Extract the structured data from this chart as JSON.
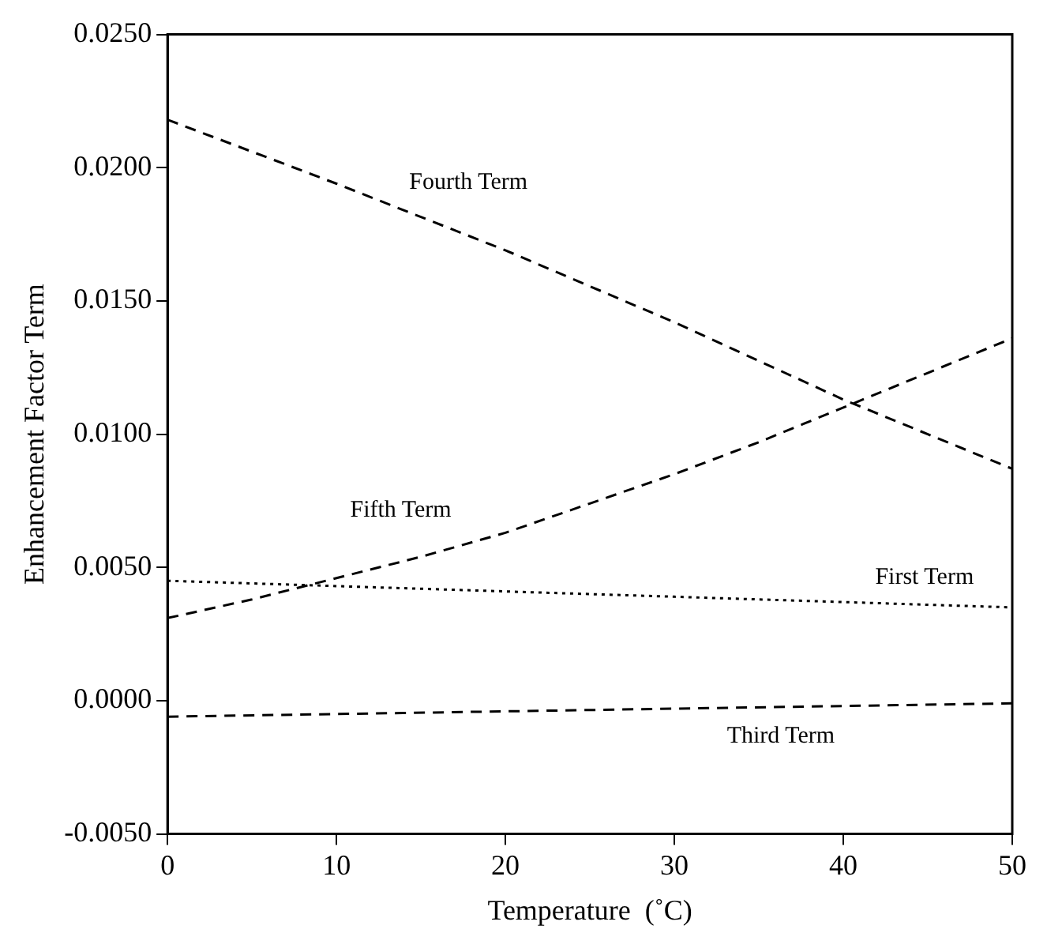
{
  "chart_data": {
    "type": "line",
    "xlabel": "Temperature  (˚C)",
    "ylabel": "Enhancement Factor Term",
    "xlim": [
      0,
      50
    ],
    "xticks": [
      0,
      10,
      20,
      30,
      40,
      50
    ],
    "ylim": [
      -0.005,
      0.025
    ],
    "yticks": [
      {
        "value": -0.005,
        "label": "-0.0050"
      },
      {
        "value": 0,
        "label": "0.0000"
      },
      {
        "value": 0.005,
        "label": "0.0050"
      },
      {
        "value": 0.01,
        "label": "0.0100"
      },
      {
        "value": 0.015,
        "label": "0.0150"
      },
      {
        "value": 0.02,
        "label": "0.0200"
      },
      {
        "value": 0.025,
        "label": "0.0250"
      }
    ],
    "grid": false,
    "legend": false,
    "marker": "none",
    "series": [
      {
        "name": "Fourth Term",
        "color": "#000000",
        "line_style": "dashed",
        "x": [
          0,
          10,
          20,
          30,
          40,
          50
        ],
        "values": [
          0.0218,
          0.0194,
          0.0169,
          0.0142,
          0.0113,
          0.0087
        ]
      },
      {
        "name": "Fifth Term",
        "color": "#000000",
        "line_style": "dashed",
        "x": [
          0,
          5,
          10,
          15,
          20,
          25,
          30,
          35,
          40,
          45,
          50
        ],
        "values": [
          0.0031,
          0.0038,
          0.0046,
          0.0054,
          0.0063,
          0.0074,
          0.0085,
          0.0097,
          0.011,
          0.0123,
          0.0136
        ]
      },
      {
        "name": "First Term",
        "color": "#000000",
        "line_style": "dotted",
        "x": [
          0,
          10,
          20,
          30,
          40,
          50
        ],
        "values": [
          0.0045,
          0.0043,
          0.0041,
          0.0039,
          0.0037,
          0.0035
        ]
      },
      {
        "name": "Third Term",
        "color": "#000000",
        "line_style": "dashed",
        "x": [
          0,
          10,
          20,
          30,
          40,
          50
        ],
        "values": [
          -0.0006,
          -0.0005,
          -0.0004,
          -0.0003,
          -0.0002,
          -0.0001
        ]
      }
    ]
  }
}
